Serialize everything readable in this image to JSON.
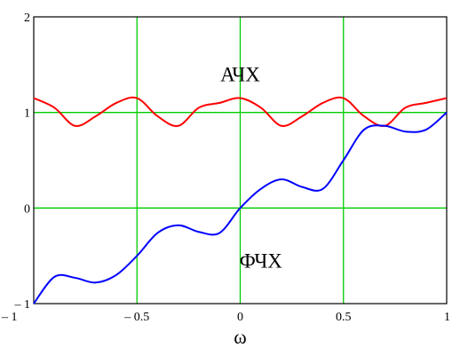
{
  "chart_data": {
    "type": "line",
    "xlabel": "ω",
    "ylabel": "",
    "xlim": [
      -1,
      1
    ],
    "ylim": [
      -1,
      2
    ],
    "grid": true,
    "grid_color": "#00cc00",
    "x_ticks": [
      {
        "value": -1,
        "label": "– 1"
      },
      {
        "value": -0.5,
        "label": "– 0.5"
      },
      {
        "value": 0,
        "label": "0"
      },
      {
        "value": 0.5,
        "label": "0.5"
      },
      {
        "value": 1,
        "label": "1"
      }
    ],
    "y_ticks": [
      {
        "value": -1,
        "label": "– 1"
      },
      {
        "value": 0,
        "label": "0"
      },
      {
        "value": 1,
        "label": "1"
      },
      {
        "value": 2,
        "label": "2"
      }
    ],
    "annotations": [
      {
        "text": "АЧХ",
        "x": 0,
        "y": 1.4
      },
      {
        "text": "ФЧХ",
        "x": 0.1,
        "y": -0.55
      }
    ],
    "series": [
      {
        "name": "АЧХ",
        "color": "#ff0000",
        "x": [
          -1,
          -0.9,
          -0.8,
          -0.7,
          -0.6,
          -0.5,
          -0.4,
          -0.3,
          -0.2,
          -0.1,
          0,
          0.1,
          0.2,
          0.3,
          0.4,
          0.5,
          0.6,
          0.7,
          0.8,
          0.9,
          1
        ],
        "y": [
          1.15,
          1.05,
          0.86,
          0.96,
          1.1,
          1.15,
          0.96,
          0.86,
          1.05,
          1.1,
          1.15,
          1.05,
          0.86,
          0.96,
          1.1,
          1.15,
          0.96,
          0.86,
          1.05,
          1.1,
          1.15
        ]
      },
      {
        "name": "ФЧХ",
        "color": "#0000ff",
        "x": [
          -1,
          -0.9,
          -0.8,
          -0.7,
          -0.6,
          -0.5,
          -0.4,
          -0.3,
          -0.2,
          -0.1,
          0,
          0.1,
          0.2,
          0.3,
          0.4,
          0.5,
          0.6,
          0.7,
          0.8,
          0.9,
          1
        ],
        "y": [
          -1,
          -0.72,
          -0.73,
          -0.78,
          -0.7,
          -0.5,
          -0.26,
          -0.18,
          -0.25,
          -0.26,
          0,
          0.2,
          0.3,
          0.22,
          0.2,
          0.5,
          0.82,
          0.86,
          0.8,
          0.82,
          1
        ]
      }
    ]
  }
}
